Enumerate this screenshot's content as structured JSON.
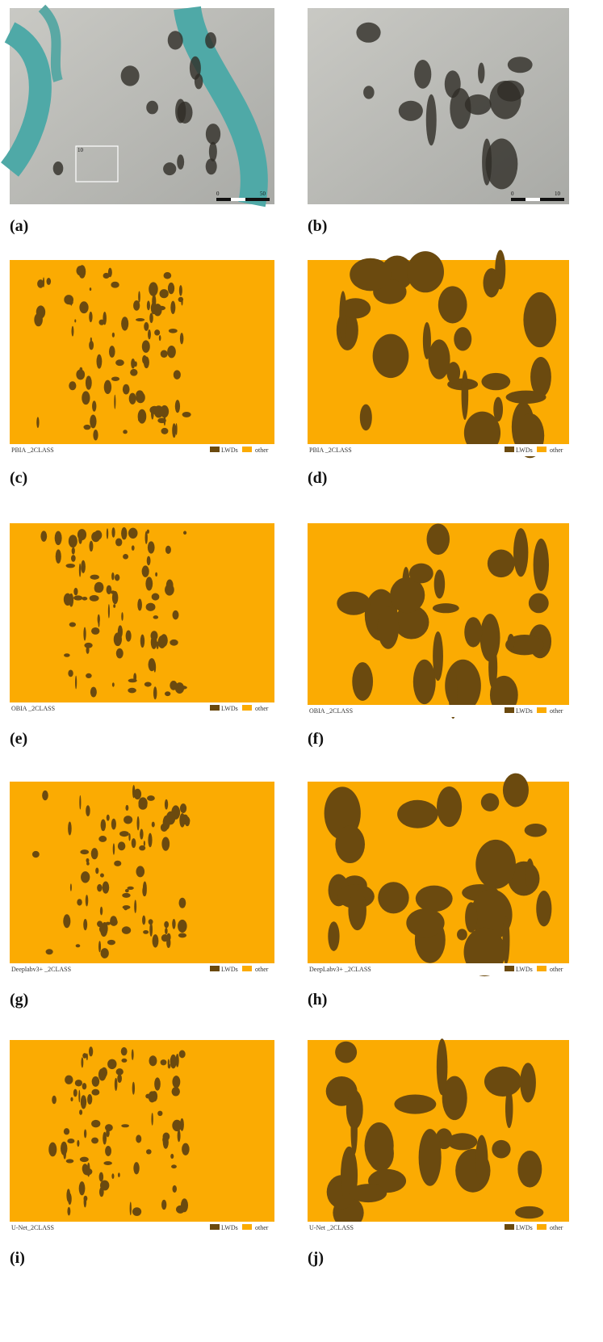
{
  "legend": [
    "LWDs",
    "other"
  ],
  "panels": [
    {
      "label": "(a)",
      "scale": [
        "0",
        "50"
      ],
      "inset": "10"
    },
    {
      "label": "(b)",
      "scale": [
        "0",
        "10"
      ]
    },
    {
      "label": "(c)",
      "caption": "PBIA _2CLASS"
    },
    {
      "label": "(d)",
      "caption": "PBIA _2CLASS"
    },
    {
      "label": "(e)",
      "caption": "OBIA _2CLASS"
    },
    {
      "label": "(f)",
      "caption": "OBIA _2CLASS"
    },
    {
      "label": "(g)",
      "caption": "Deeplabv3+ _2CLASS"
    },
    {
      "label": "(h)",
      "caption": "DeepLabv3+ _2CLASS"
    },
    {
      "label": "(i)",
      "caption": "U-Net_2CLASS"
    },
    {
      "label": "(j)",
      "caption": "U-Net _2CLASS"
    }
  ]
}
